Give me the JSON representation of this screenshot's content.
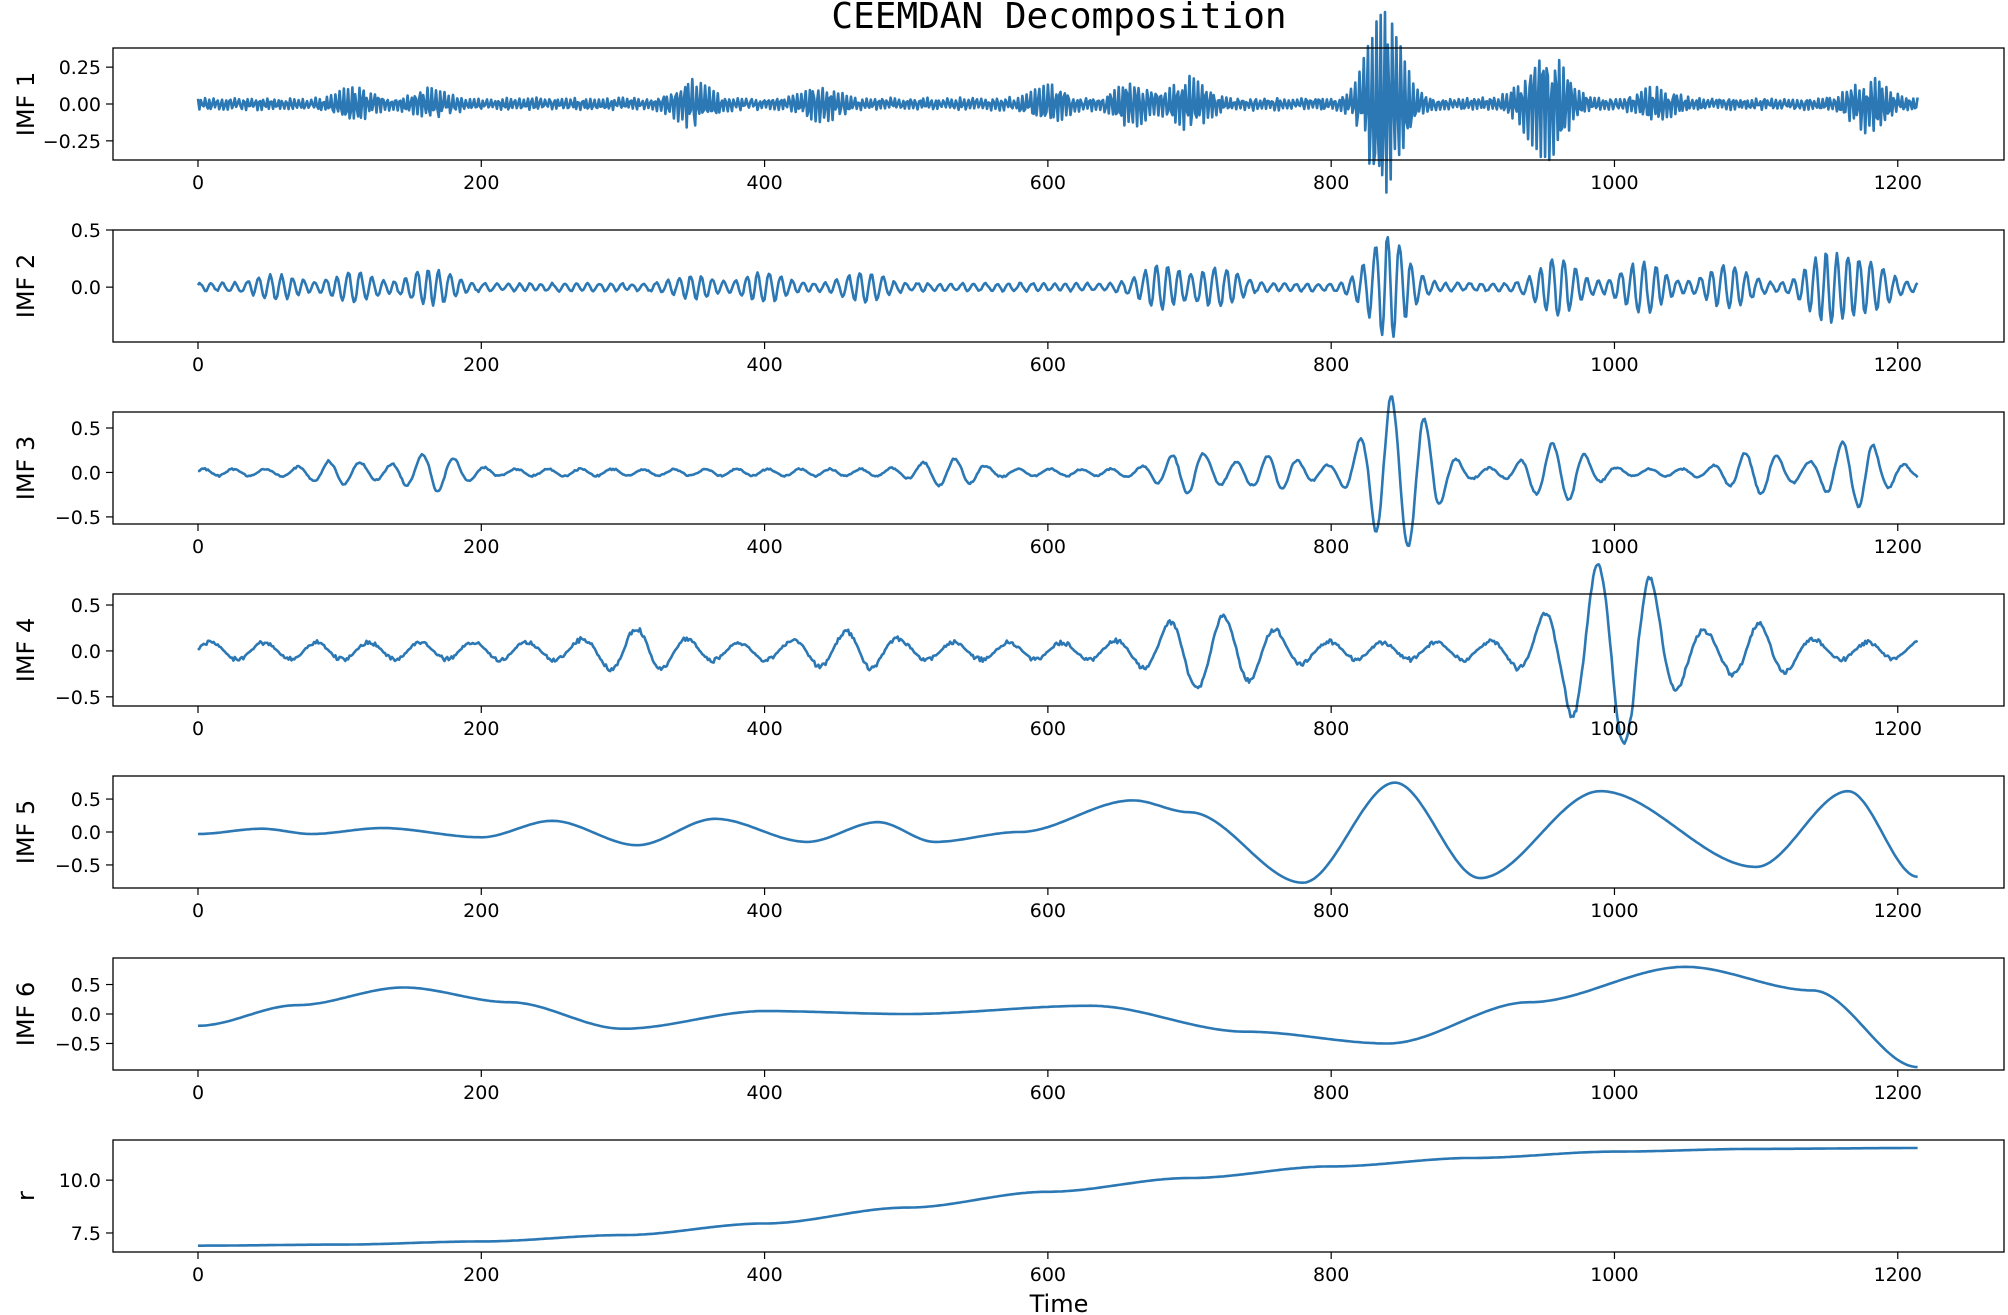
{
  "chart_data": {
    "type": "line",
    "title": "CEEMDAN Decomposition",
    "xlabel": "Time",
    "line_color": "#2b78b4",
    "x_range": [
      0,
      1214
    ],
    "xlim": [
      -60,
      1275
    ],
    "xticks": [
      0,
      200,
      400,
      600,
      800,
      1000,
      1200
    ],
    "panels": [
      {
        "ylabel": "IMF 1",
        "ylim": [
          -0.38,
          0.38
        ],
        "yticks": [
          0.25,
          0.0,
          -0.25
        ],
        "ytick_labels": [
          "0.25",
          "0.00",
          "−0.25"
        ],
        "amp": 0.045,
        "freq_cycles": 420,
        "bursts": [
          [
            110,
            0.08
          ],
          [
            165,
            0.07
          ],
          [
            350,
            0.13
          ],
          [
            440,
            0.1
          ],
          [
            600,
            0.1
          ],
          [
            660,
            0.12
          ],
          [
            700,
            0.15
          ],
          [
            835,
            0.33
          ],
          [
            840,
            0.3
          ],
          [
            940,
            0.1
          ],
          [
            955,
            0.3
          ],
          [
            1030,
            0.08
          ],
          [
            1180,
            0.16
          ]
        ],
        "baseline": [
          [
            0,
            0
          ],
          [
            1214,
            0
          ]
        ]
      },
      {
        "ylabel": "IMF 2",
        "ylim": [
          -0.48,
          0.5
        ],
        "yticks": [
          0.5,
          0.0
        ],
        "ytick_labels": [
          "0.5",
          "0.0"
        ],
        "amp": 0.04,
        "freq_cycles": 150,
        "bursts": [
          [
            55,
            0.08
          ],
          [
            110,
            0.1
          ],
          [
            165,
            0.13
          ],
          [
            350,
            0.07
          ],
          [
            400,
            0.1
          ],
          [
            470,
            0.1
          ],
          [
            680,
            0.16
          ],
          [
            720,
            0.14
          ],
          [
            840,
            0.42
          ],
          [
            960,
            0.22
          ],
          [
            1020,
            0.2
          ],
          [
            1080,
            0.16
          ],
          [
            1150,
            0.28
          ],
          [
            1180,
            0.18
          ]
        ],
        "baseline": [
          [
            0,
            0
          ],
          [
            1214,
            0
          ]
        ]
      },
      {
        "ylabel": "IMF 3",
        "ylim": [
          -0.58,
          0.68
        ],
        "yticks": [
          0.5,
          0.0,
          -0.5
        ],
        "ytick_labels": [
          "0.5",
          "0.0",
          "−0.5"
        ],
        "amp": 0.05,
        "freq_cycles": 55,
        "bursts": [
          [
            100,
            0.1
          ],
          [
            165,
            0.18
          ],
          [
            530,
            0.12
          ],
          [
            700,
            0.2
          ],
          [
            760,
            0.15
          ],
          [
            840,
            0.6
          ],
          [
            860,
            0.4
          ],
          [
            960,
            0.3
          ],
          [
            1100,
            0.2
          ],
          [
            1170,
            0.35
          ]
        ],
        "baseline": [
          [
            0,
            0
          ],
          [
            1214,
            0
          ]
        ]
      },
      {
        "ylabel": "IMF 4",
        "ylim": [
          -0.6,
          0.62
        ],
        "yticks": [
          0.5,
          0.0,
          -0.5
        ],
        "ytick_labels": [
          "0.5",
          "0.0",
          "−0.5"
        ],
        "amp": 0.12,
        "freq_cycles": 32,
        "bursts": [
          [
            310,
            0.15
          ],
          [
            460,
            0.12
          ],
          [
            700,
            0.25
          ],
          [
            740,
            0.2
          ],
          [
            970,
            0.4
          ],
          [
            1000,
            0.45
          ],
          [
            1020,
            0.45
          ],
          [
            1100,
            0.2
          ]
        ],
        "baseline": [
          [
            0,
            0
          ],
          [
            1214,
            0
          ]
        ]
      },
      {
        "ylabel": "IMF 5",
        "ylim": [
          -0.85,
          0.85
        ],
        "yticks": [
          0.5,
          0.0,
          -0.5
        ],
        "ytick_labels": [
          "0.5",
          "0.0",
          "−0.5"
        ],
        "points": [
          [
            0,
            -0.03
          ],
          [
            45,
            0.05
          ],
          [
            80,
            -0.03
          ],
          [
            130,
            0.06
          ],
          [
            200,
            -0.08
          ],
          [
            250,
            0.17
          ],
          [
            310,
            -0.2
          ],
          [
            365,
            0.2
          ],
          [
            430,
            -0.15
          ],
          [
            480,
            0.15
          ],
          [
            520,
            -0.15
          ],
          [
            580,
            0.0
          ],
          [
            660,
            0.48
          ],
          [
            700,
            0.3
          ],
          [
            780,
            -0.77
          ],
          [
            845,
            0.75
          ],
          [
            905,
            -0.7
          ],
          [
            990,
            0.62
          ],
          [
            1100,
            -0.53
          ],
          [
            1165,
            0.62
          ],
          [
            1214,
            -0.68
          ]
        ]
      },
      {
        "ylabel": "IMF 6",
        "ylim": [
          -0.95,
          0.95
        ],
        "yticks": [
          0.5,
          0.0,
          -0.5
        ],
        "ytick_labels": [
          "0.5",
          "0.0",
          "−0.5"
        ],
        "points": [
          [
            0,
            -0.2
          ],
          [
            70,
            0.15
          ],
          [
            145,
            0.45
          ],
          [
            220,
            0.2
          ],
          [
            300,
            -0.25
          ],
          [
            400,
            0.05
          ],
          [
            500,
            0.0
          ],
          [
            630,
            0.14
          ],
          [
            740,
            -0.3
          ],
          [
            840,
            -0.5
          ],
          [
            940,
            0.2
          ],
          [
            1050,
            0.8
          ],
          [
            1140,
            0.4
          ],
          [
            1214,
            -0.9
          ]
        ]
      },
      {
        "ylabel": "r",
        "ylim": [
          6.6,
          11.9
        ],
        "yticks": [
          10.0,
          7.5
        ],
        "ytick_labels": [
          "10.0",
          "7.5"
        ],
        "points": [
          [
            0,
            6.9
          ],
          [
            100,
            6.95
          ],
          [
            200,
            7.1
          ],
          [
            300,
            7.4
          ],
          [
            400,
            7.95
          ],
          [
            500,
            8.7
          ],
          [
            600,
            9.45
          ],
          [
            700,
            10.1
          ],
          [
            800,
            10.65
          ],
          [
            900,
            11.05
          ],
          [
            1000,
            11.35
          ],
          [
            1100,
            11.48
          ],
          [
            1214,
            11.52
          ]
        ]
      }
    ]
  }
}
